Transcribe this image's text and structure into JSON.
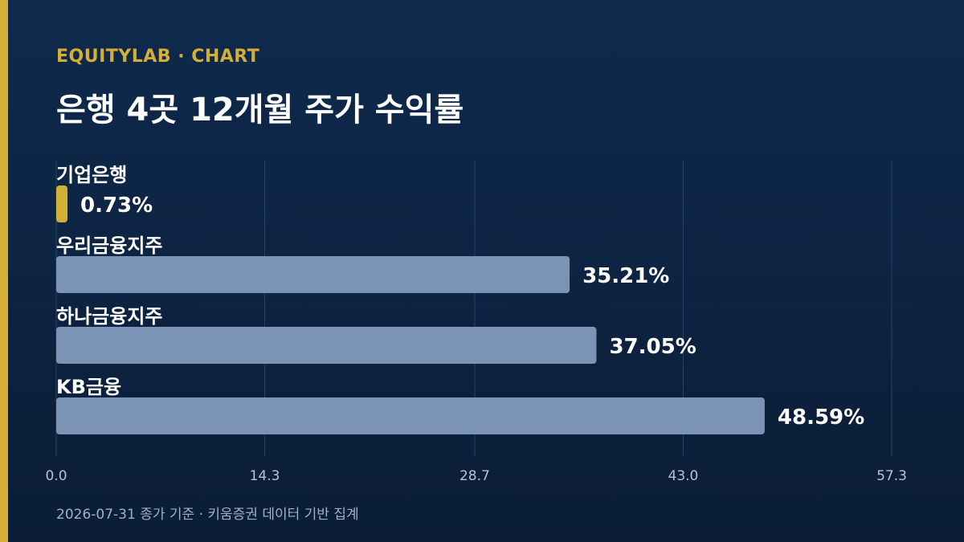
{
  "header": {
    "brand": "EQUITYLAB · CHART",
    "title": "은행 4곳 12개월 주가 수익률"
  },
  "footer": {
    "note": "2026-07-31 종가 기준 · 키움증권 데이터 기반 집계"
  },
  "colors": {
    "accent": "#d4af37",
    "bar": "#7b93b5",
    "highlight_bar": "#d4af37"
  },
  "chart_data": {
    "type": "bar",
    "orientation": "horizontal",
    "title": "은행 4곳 12개월 주가 수익률",
    "categories": [
      "기업은행",
      "우리금융지주",
      "하나금융지주",
      "KB금융"
    ],
    "values": [
      0.73,
      35.21,
      37.05,
      48.59
    ],
    "value_labels": [
      "0.73%",
      "35.21%",
      "37.05%",
      "48.59%"
    ],
    "highlight_index": 0,
    "xlim": [
      0,
      57.3
    ],
    "x_ticks": [
      0.0,
      14.3,
      28.7,
      43.0,
      57.3
    ],
    "x_tick_labels": [
      "0.0",
      "14.3",
      "28.7",
      "43.0",
      "57.3"
    ],
    "grid": true
  }
}
